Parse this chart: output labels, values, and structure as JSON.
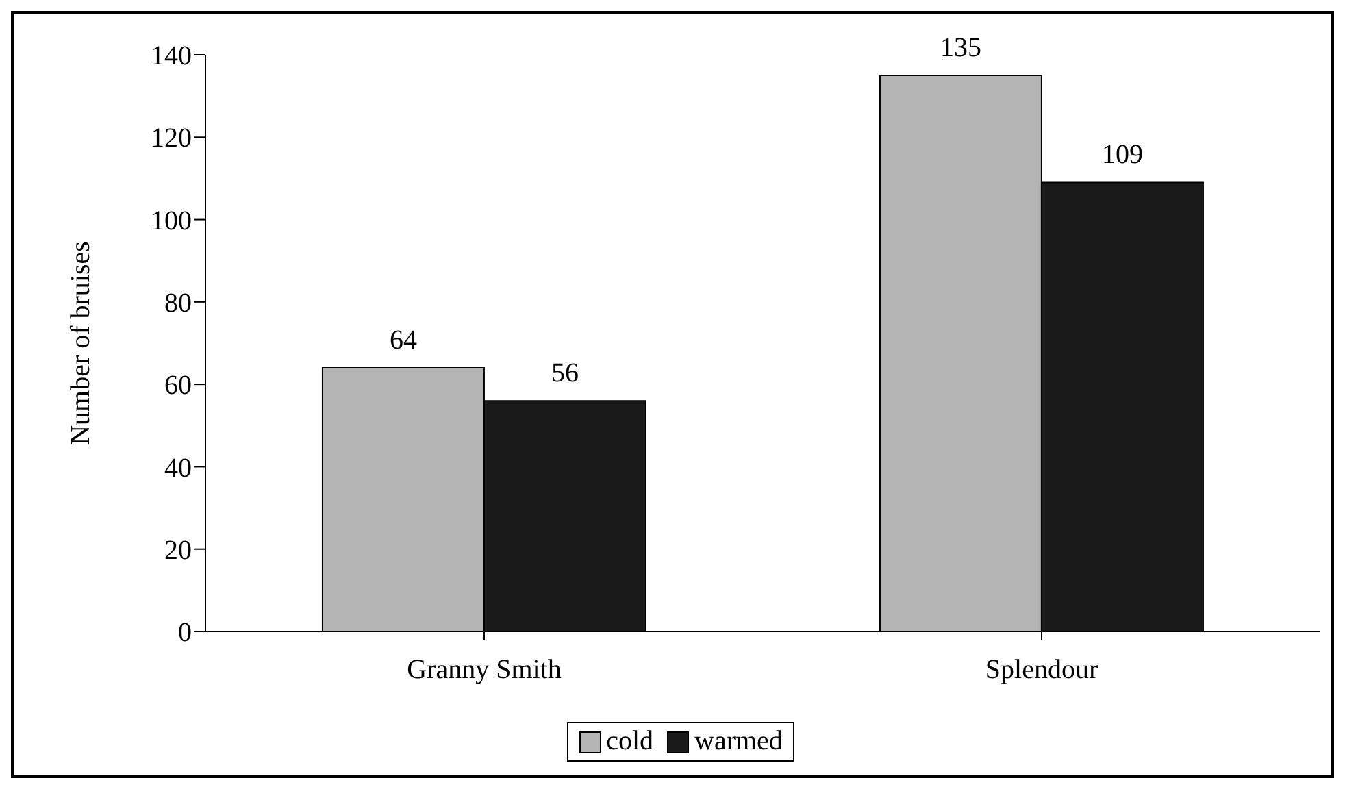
{
  "chart_data": {
    "type": "bar",
    "ylabel": "Number of bruises",
    "categories": [
      "Granny Smith",
      "Splendour"
    ],
    "series": [
      {
        "name": "cold",
        "color": "#b4b4b4",
        "values": [
          64,
          135
        ]
      },
      {
        "name": "warmed",
        "color": "#1a1a1a",
        "values": [
          56,
          109
        ]
      }
    ],
    "ylim": [
      0,
      140
    ],
    "yticks": [
      0,
      20,
      40,
      60,
      80,
      100,
      120,
      140
    ],
    "grid": false,
    "legend": "bottom",
    "data_labels": true
  }
}
